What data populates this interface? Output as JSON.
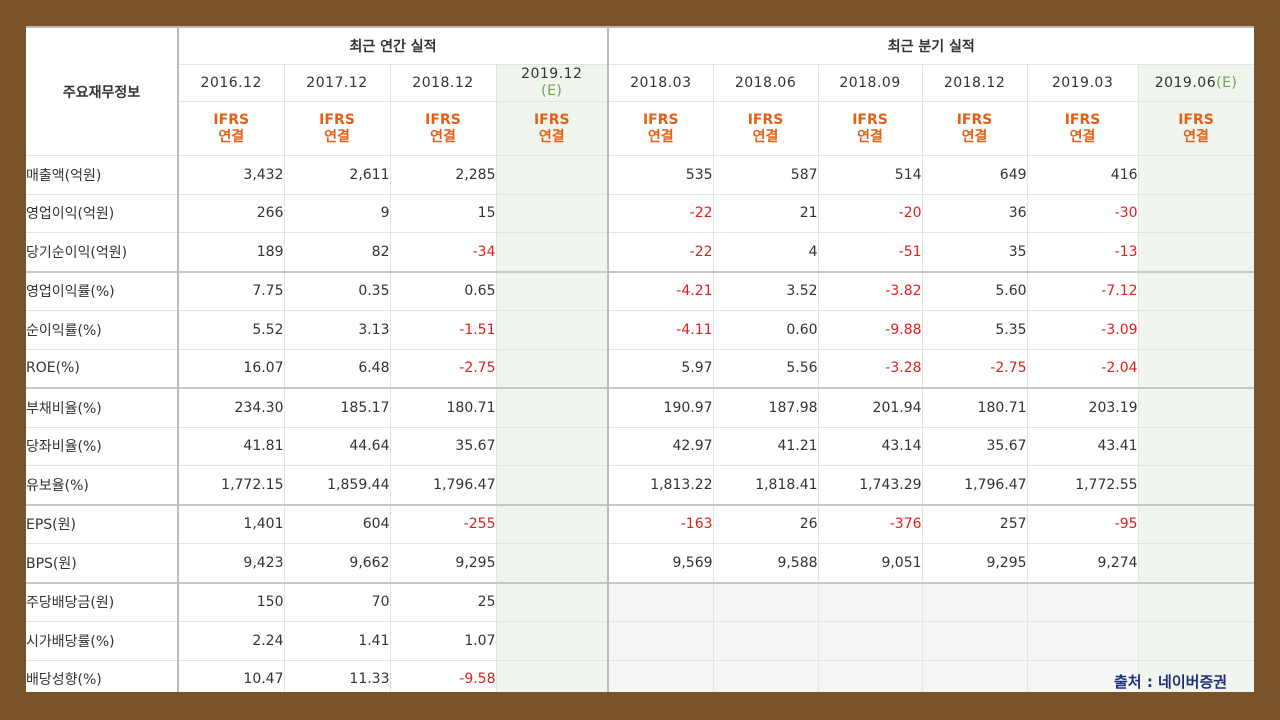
{
  "table": {
    "corner_label": "주요재무정보",
    "annual_header": "최근 연간 실적",
    "quarterly_header": "최근 분기 실적",
    "periods": [
      {
        "label": "2016.12",
        "est": false,
        "group": "annual"
      },
      {
        "label": "2017.12",
        "est": false,
        "group": "annual"
      },
      {
        "label": "2018.12",
        "est": false,
        "group": "annual"
      },
      {
        "label": "2019.12",
        "est_label": "(E)",
        "est": true,
        "group": "annual"
      },
      {
        "label": "2018.03",
        "est": false,
        "group": "quarterly"
      },
      {
        "label": "2018.06",
        "est": false,
        "group": "quarterly"
      },
      {
        "label": "2018.09",
        "est": false,
        "group": "quarterly"
      },
      {
        "label": "2018.12",
        "est": false,
        "group": "quarterly"
      },
      {
        "label": "2019.03",
        "est": false,
        "group": "quarterly"
      },
      {
        "label": "2019.06",
        "est_label": "(E)",
        "est": true,
        "group": "quarterly"
      }
    ],
    "ifrs_line1": "IFRS",
    "ifrs_line2": "연결",
    "rows": [
      {
        "label": "매출액(억원)",
        "values": [
          "3,432",
          "2,611",
          "2,285",
          "",
          "535",
          "587",
          "514",
          "649",
          "416",
          ""
        ]
      },
      {
        "label": "영업이익(억원)",
        "values": [
          "266",
          "9",
          "15",
          "",
          "-22",
          "21",
          "-20",
          "36",
          "-30",
          ""
        ]
      },
      {
        "label": "당기순이익(억원)",
        "values": [
          "189",
          "82",
          "-34",
          "",
          "-22",
          "4",
          "-51",
          "35",
          "-13",
          ""
        ]
      },
      {
        "label": "영업이익률(%)",
        "values": [
          "7.75",
          "0.35",
          "0.65",
          "",
          "-4.21",
          "3.52",
          "-3.82",
          "5.60",
          "-7.12",
          ""
        ]
      },
      {
        "label": "순이익률(%)",
        "values": [
          "5.52",
          "3.13",
          "-1.51",
          "",
          "-4.11",
          "0.60",
          "-9.88",
          "5.35",
          "-3.09",
          ""
        ]
      },
      {
        "label": "ROE(%)",
        "values": [
          "16.07",
          "6.48",
          "-2.75",
          "",
          "5.97",
          "5.56",
          "-3.28",
          "-2.75",
          "-2.04",
          ""
        ]
      },
      {
        "label": "부채비율(%)",
        "values": [
          "234.30",
          "185.17",
          "180.71",
          "",
          "190.97",
          "187.98",
          "201.94",
          "180.71",
          "203.19",
          ""
        ]
      },
      {
        "label": "당좌비율(%)",
        "values": [
          "41.81",
          "44.64",
          "35.67",
          "",
          "42.97",
          "41.21",
          "43.14",
          "35.67",
          "43.41",
          ""
        ]
      },
      {
        "label": "유보율(%)",
        "values": [
          "1,772.15",
          "1,859.44",
          "1,796.47",
          "",
          "1,813.22",
          "1,818.41",
          "1,743.29",
          "1,796.47",
          "1,772.55",
          ""
        ]
      },
      {
        "label": "EPS(원)",
        "values": [
          "1,401",
          "604",
          "-255",
          "",
          "-163",
          "26",
          "-376",
          "257",
          "-95",
          ""
        ]
      },
      {
        "label": "BPS(원)",
        "values": [
          "9,423",
          "9,662",
          "9,295",
          "",
          "9,569",
          "9,588",
          "9,051",
          "9,295",
          "9,274",
          ""
        ]
      },
      {
        "label": "주당배당금(원)",
        "values": [
          "150",
          "70",
          "25",
          "",
          "",
          "",
          "",
          "",
          "",
          ""
        ]
      },
      {
        "label": "시가배당률(%)",
        "values": [
          "2.24",
          "1.41",
          "1.07",
          "",
          "",
          "",
          "",
          "",
          "",
          ""
        ]
      },
      {
        "label": "배당성향(%)",
        "values": [
          "10.47",
          "11.33",
          "-9.58",
          "",
          "",
          "",
          "",
          "",
          "",
          ""
        ]
      }
    ],
    "group_breaks_before_rows": [
      3,
      6,
      9,
      11
    ]
  },
  "source_label": "출처 : 네이버증권",
  "colors": {
    "frame": "#7a5328",
    "ifrs": "#e85f13",
    "negative": "#e02020",
    "estimate_bg": "#f0f6ee",
    "estimate_text": "#6aa84f",
    "source": "#1f2f7a"
  }
}
